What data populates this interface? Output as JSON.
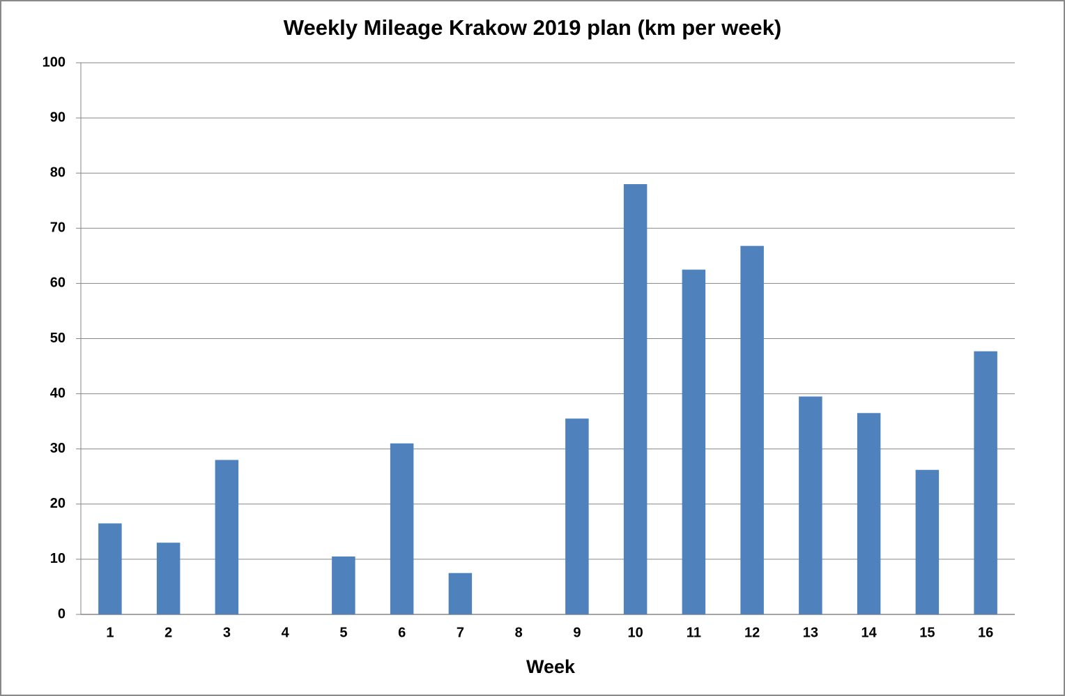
{
  "chart_data": {
    "type": "bar",
    "title": "Weekly Mileage Krakow 2019 plan (km per week)",
    "x_label": "Week",
    "categories": [
      "1",
      "2",
      "3",
      "4",
      "5",
      "6",
      "7",
      "8",
      "9",
      "10",
      "11",
      "12",
      "13",
      "14",
      "15",
      "16"
    ],
    "values": [
      16.5,
      13,
      28,
      0,
      10.5,
      31,
      7.5,
      0,
      35.5,
      78,
      62.5,
      66.8,
      39.5,
      36.5,
      26.2,
      47.7
    ],
    "color": "#4f81bd",
    "ylim": [
      0,
      100
    ],
    "yticks": [
      0,
      10,
      20,
      30,
      40,
      50,
      60,
      70,
      80,
      90,
      100
    ],
    "grid": true
  }
}
